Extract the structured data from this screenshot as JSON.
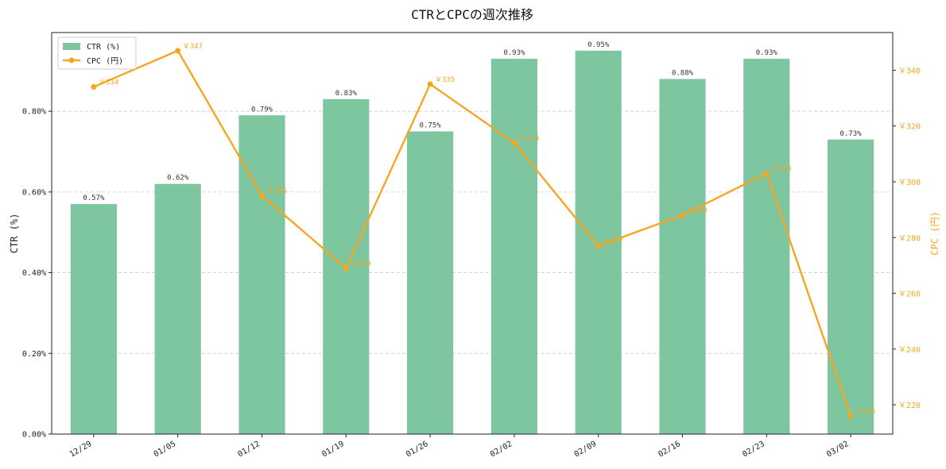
{
  "chart_data": {
    "type": "bar",
    "title": "CTRとCPCの週次推移",
    "xlabel": "",
    "ylabel": "CTR (%)",
    "y2label": "CPC (円)",
    "categories": [
      "12/29",
      "01/05",
      "01/12",
      "01/19",
      "01/26",
      "02/02",
      "02/09",
      "02/16",
      "02/23",
      "03/02"
    ],
    "series": [
      {
        "name": "CTR (%)",
        "type": "bar",
        "axis": "left",
        "color": "#7dc6a0",
        "values": [
          0.57,
          0.62,
          0.79,
          0.83,
          0.75,
          0.93,
          0.95,
          0.88,
          0.93,
          0.73
        ],
        "labels": [
          "0.57%",
          "0.62%",
          "0.79%",
          "0.83%",
          "0.75%",
          "0.93%",
          "0.95%",
          "0.88%",
          "0.93%",
          "0.73%"
        ]
      },
      {
        "name": "CPC (円)",
        "type": "line",
        "axis": "right",
        "color": "#f5a623",
        "values": [
          334,
          347,
          295,
          269,
          335,
          314,
          277,
          288,
          303,
          216
        ],
        "labels": [
          "￥334",
          "￥347",
          "￥295",
          "￥269",
          "￥335",
          "￥314",
          "￥277",
          "￥288",
          "￥303",
          "￥216"
        ]
      }
    ],
    "ylim": [
      0,
      0.995
    ],
    "y2lim": [
      209.5,
      353.5
    ],
    "yticks": [
      0,
      0.2,
      0.4,
      0.6,
      0.8
    ],
    "ytick_labels": [
      "0.00%",
      "0.20%",
      "0.40%",
      "0.60%",
      "0.80%"
    ],
    "y2ticks": [
      220,
      240,
      260,
      280,
      300,
      320,
      340
    ],
    "y2tick_labels": [
      "￥220",
      "￥240",
      "￥260",
      "￥280",
      "￥300",
      "￥320",
      "￥340"
    ],
    "grid": true,
    "legend_position": "top-left",
    "legend": [
      "CTR (%)",
      "CPC (円)"
    ]
  }
}
